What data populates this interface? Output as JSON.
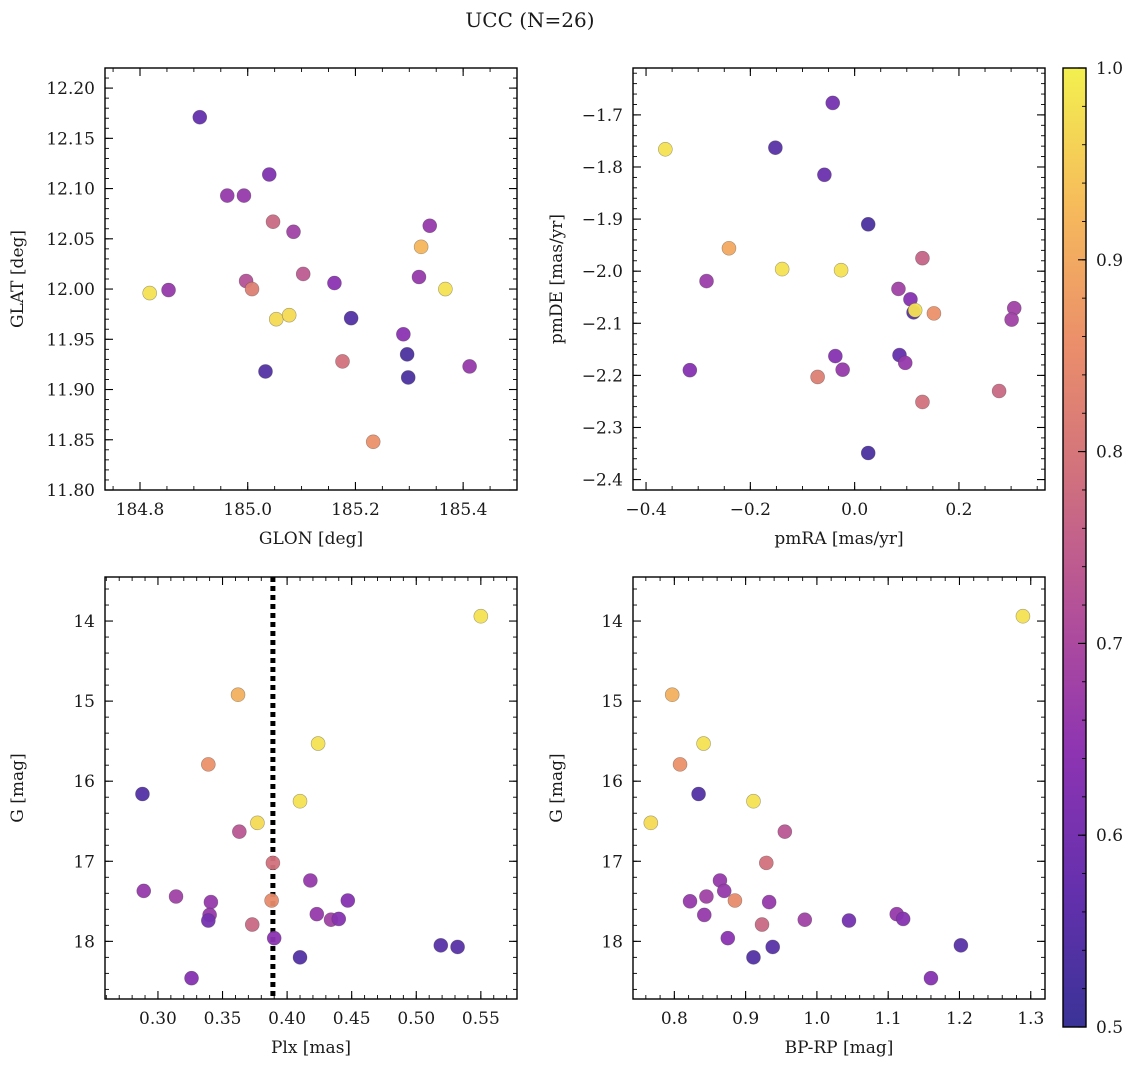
{
  "title": "UCC (N=26)",
  "colormap": {
    "name": "plasma",
    "range": [
      0.5,
      1.0
    ],
    "stops": [
      "#3a3397",
      "#6530ad",
      "#8d34b2",
      "#b24f9a",
      "#d0707e",
      "#eb8f6a",
      "#f6bb5b",
      "#f3f04f"
    ],
    "ticks": [
      {
        "value": 0.5,
        "label": "0.5"
      },
      {
        "value": 0.6,
        "label": "0.6"
      },
      {
        "value": 0.7,
        "label": "0.7"
      },
      {
        "value": 0.8,
        "label": "0.8"
      },
      {
        "value": 0.9,
        "label": "0.9"
      },
      {
        "value": 1.0,
        "label": "1.0"
      }
    ]
  },
  "chart_data": [
    {
      "type": "scatter",
      "xlabel": "GLON [deg]",
      "ylabel": "GLAT [deg]",
      "xlim": [
        184.735,
        185.5
      ],
      "ylim": [
        11.8,
        12.22
      ],
      "xticks": [
        {
          "v": 184.8,
          "l": "184.8"
        },
        {
          "v": 185.0,
          "l": "185.0"
        },
        {
          "v": 185.2,
          "l": "185.2"
        },
        {
          "v": 185.4,
          "l": "185.4"
        }
      ],
      "yticks": [
        {
          "v": 11.8,
          "l": "11.80"
        },
        {
          "v": 11.85,
          "l": "11.85"
        },
        {
          "v": 11.9,
          "l": "11.90"
        },
        {
          "v": 11.95,
          "l": "11.95"
        },
        {
          "v": 12.0,
          "l": "12.00"
        },
        {
          "v": 12.05,
          "l": "12.05"
        },
        {
          "v": 12.1,
          "l": "12.10"
        },
        {
          "v": 12.15,
          "l": "12.15"
        },
        {
          "v": 12.2,
          "l": "12.20"
        }
      ],
      "x_minor_step": 0.05,
      "y_minor_step": 0.01,
      "yinvert": false,
      "vline": null,
      "points": [
        {
          "x": 184.911,
          "y": 12.171,
          "c": 0.57
        },
        {
          "x": 184.962,
          "y": 12.093,
          "c": 0.66
        },
        {
          "x": 184.993,
          "y": 12.093,
          "c": 0.66
        },
        {
          "x": 185.04,
          "y": 12.114,
          "c": 0.62
        },
        {
          "x": 185.047,
          "y": 12.067,
          "c": 0.77
        },
        {
          "x": 185.085,
          "y": 12.057,
          "c": 0.68
        },
        {
          "x": 185.103,
          "y": 12.015,
          "c": 0.74
        },
        {
          "x": 184.997,
          "y": 12.008,
          "c": 0.72
        },
        {
          "x": 185.008,
          "y": 12.0,
          "c": 0.82
        },
        {
          "x": 184.853,
          "y": 11.999,
          "c": 0.66
        },
        {
          "x": 184.818,
          "y": 11.996,
          "c": 0.98
        },
        {
          "x": 185.053,
          "y": 11.97,
          "c": 0.97
        },
        {
          "x": 185.077,
          "y": 11.974,
          "c": 0.97
        },
        {
          "x": 185.161,
          "y": 12.006,
          "c": 0.64
        },
        {
          "x": 185.192,
          "y": 11.971,
          "c": 0.54
        },
        {
          "x": 185.176,
          "y": 11.928,
          "c": 0.79
        },
        {
          "x": 185.033,
          "y": 11.918,
          "c": 0.54
        },
        {
          "x": 185.289,
          "y": 11.955,
          "c": 0.64
        },
        {
          "x": 185.296,
          "y": 11.935,
          "c": 0.53
        },
        {
          "x": 185.298,
          "y": 11.912,
          "c": 0.53
        },
        {
          "x": 185.318,
          "y": 12.012,
          "c": 0.66
        },
        {
          "x": 185.322,
          "y": 12.042,
          "c": 0.92
        },
        {
          "x": 185.338,
          "y": 12.063,
          "c": 0.66
        },
        {
          "x": 185.367,
          "y": 12.0,
          "c": 0.98
        },
        {
          "x": 185.412,
          "y": 11.923,
          "c": 0.66
        },
        {
          "x": 185.233,
          "y": 11.848,
          "c": 0.86
        }
      ]
    },
    {
      "type": "scatter",
      "xlabel": "pmRA [mas/yr]",
      "ylabel": "pmDE [mas/yr]",
      "xlim": [
        -0.425,
        0.365
      ],
      "ylim": [
        -2.42,
        -1.61
      ],
      "xticks": [
        {
          "v": -0.4,
          "l": "−0.4"
        },
        {
          "v": -0.2,
          "l": "−0.2"
        },
        {
          "v": 0.0,
          "l": "0.0"
        },
        {
          "v": 0.2,
          "l": "0.2"
        }
      ],
      "yticks": [
        {
          "v": -2.4,
          "l": "−2.4"
        },
        {
          "v": -2.3,
          "l": "−2.3"
        },
        {
          "v": -2.2,
          "l": "−2.2"
        },
        {
          "v": -2.1,
          "l": "−2.1"
        },
        {
          "v": -2.0,
          "l": "−2.0"
        },
        {
          "v": -1.9,
          "l": "−1.9"
        },
        {
          "v": -1.8,
          "l": "−1.8"
        },
        {
          "v": -1.7,
          "l": "−1.7"
        }
      ],
      "x_minor_step": 0.05,
      "y_minor_step": 0.02,
      "yinvert": false,
      "vline": null,
      "points": [
        {
          "x": -0.363,
          "y": -1.766,
          "c": 0.98
        },
        {
          "x": -0.042,
          "y": -1.677,
          "c": 0.6
        },
        {
          "x": -0.152,
          "y": -1.763,
          "c": 0.55
        },
        {
          "x": -0.058,
          "y": -1.815,
          "c": 0.58
        },
        {
          "x": 0.026,
          "y": -1.91,
          "c": 0.53
        },
        {
          "x": -0.241,
          "y": -1.956,
          "c": 0.9
        },
        {
          "x": -0.139,
          "y": -1.996,
          "c": 0.98
        },
        {
          "x": -0.026,
          "y": -1.998,
          "c": 0.98
        },
        {
          "x": -0.284,
          "y": -2.019,
          "c": 0.67
        },
        {
          "x": 0.13,
          "y": -1.975,
          "c": 0.76
        },
        {
          "x": 0.084,
          "y": -2.034,
          "c": 0.68
        },
        {
          "x": 0.107,
          "y": -2.054,
          "c": 0.63
        },
        {
          "x": 0.113,
          "y": -2.079,
          "c": 0.55
        },
        {
          "x": 0.116,
          "y": -2.075,
          "c": 0.98
        },
        {
          "x": 0.152,
          "y": -2.081,
          "c": 0.86
        },
        {
          "x": 0.306,
          "y": -2.071,
          "c": 0.68
        },
        {
          "x": 0.301,
          "y": -2.093,
          "c": 0.68
        },
        {
          "x": -0.316,
          "y": -2.19,
          "c": 0.63
        },
        {
          "x": -0.037,
          "y": -2.163,
          "c": 0.63
        },
        {
          "x": -0.071,
          "y": -2.203,
          "c": 0.82
        },
        {
          "x": -0.023,
          "y": -2.189,
          "c": 0.66
        },
        {
          "x": 0.086,
          "y": -2.161,
          "c": 0.57
        },
        {
          "x": 0.097,
          "y": -2.176,
          "c": 0.66
        },
        {
          "x": 0.13,
          "y": -2.251,
          "c": 0.79
        },
        {
          "x": 0.277,
          "y": -2.23,
          "c": 0.77
        },
        {
          "x": 0.026,
          "y": -2.349,
          "c": 0.53
        }
      ]
    },
    {
      "type": "scatter",
      "xlabel": "Plx [mas]",
      "ylabel": "G [mag]",
      "xlim": [
        0.259,
        0.578
      ],
      "ylim": [
        13.45,
        18.72
      ],
      "xticks": [
        {
          "v": 0.3,
          "l": "0.30"
        },
        {
          "v": 0.35,
          "l": "0.35"
        },
        {
          "v": 0.4,
          "l": "0.40"
        },
        {
          "v": 0.45,
          "l": "0.45"
        },
        {
          "v": 0.5,
          "l": "0.50"
        },
        {
          "v": 0.55,
          "l": "0.55"
        }
      ],
      "yticks": [
        {
          "v": 14,
          "l": "14"
        },
        {
          "v": 15,
          "l": "15"
        },
        {
          "v": 16,
          "l": "16"
        },
        {
          "v": 17,
          "l": "17"
        },
        {
          "v": 18,
          "l": "18"
        }
      ],
      "x_minor_step": 0.01,
      "y_minor_step": 0.2,
      "yinvert": true,
      "vline": {
        "x": 0.389
      },
      "points": [
        {
          "x": 0.55,
          "y": 13.94,
          "c": 0.98
        },
        {
          "x": 0.362,
          "y": 14.92,
          "c": 0.91
        },
        {
          "x": 0.424,
          "y": 15.53,
          "c": 0.98
        },
        {
          "x": 0.339,
          "y": 15.79,
          "c": 0.86
        },
        {
          "x": 0.288,
          "y": 16.16,
          "c": 0.54
        },
        {
          "x": 0.41,
          "y": 16.25,
          "c": 0.98
        },
        {
          "x": 0.377,
          "y": 16.52,
          "c": 0.97
        },
        {
          "x": 0.363,
          "y": 16.63,
          "c": 0.73
        },
        {
          "x": 0.389,
          "y": 17.02,
          "c": 0.79
        },
        {
          "x": 0.418,
          "y": 17.24,
          "c": 0.66
        },
        {
          "x": 0.289,
          "y": 17.37,
          "c": 0.66
        },
        {
          "x": 0.314,
          "y": 17.44,
          "c": 0.68
        },
        {
          "x": 0.341,
          "y": 17.51,
          "c": 0.66
        },
        {
          "x": 0.388,
          "y": 17.49,
          "c": 0.85
        },
        {
          "x": 0.447,
          "y": 17.49,
          "c": 0.63
        },
        {
          "x": 0.34,
          "y": 17.67,
          "c": 0.66
        },
        {
          "x": 0.339,
          "y": 17.74,
          "c": 0.6
        },
        {
          "x": 0.423,
          "y": 17.66,
          "c": 0.66
        },
        {
          "x": 0.373,
          "y": 17.79,
          "c": 0.77
        },
        {
          "x": 0.434,
          "y": 17.73,
          "c": 0.68
        },
        {
          "x": 0.44,
          "y": 17.72,
          "c": 0.63
        },
        {
          "x": 0.39,
          "y": 17.96,
          "c": 0.64
        },
        {
          "x": 0.519,
          "y": 18.05,
          "c": 0.55
        },
        {
          "x": 0.532,
          "y": 18.07,
          "c": 0.55
        },
        {
          "x": 0.41,
          "y": 18.2,
          "c": 0.54
        },
        {
          "x": 0.326,
          "y": 18.46,
          "c": 0.63
        }
      ]
    },
    {
      "type": "scatter",
      "xlabel": "BP-RP [mag]",
      "ylabel": "G [mag]",
      "xlim": [
        0.742,
        1.32
      ],
      "ylim": [
        13.45,
        18.72
      ],
      "xticks": [
        {
          "v": 0.8,
          "l": "0.8"
        },
        {
          "v": 0.9,
          "l": "0.9"
        },
        {
          "v": 1.0,
          "l": "1.0"
        },
        {
          "v": 1.1,
          "l": "1.1"
        },
        {
          "v": 1.2,
          "l": "1.2"
        },
        {
          "v": 1.3,
          "l": "1.3"
        }
      ],
      "yticks": [
        {
          "v": 14,
          "l": "14"
        },
        {
          "v": 15,
          "l": "15"
        },
        {
          "v": 16,
          "l": "16"
        },
        {
          "v": 17,
          "l": "17"
        },
        {
          "v": 18,
          "l": "18"
        }
      ],
      "x_minor_step": 0.02,
      "y_minor_step": 0.2,
      "yinvert": true,
      "vline": null,
      "points": [
        {
          "x": 1.289,
          "y": 13.94,
          "c": 0.98
        },
        {
          "x": 0.797,
          "y": 14.92,
          "c": 0.91
        },
        {
          "x": 0.841,
          "y": 15.53,
          "c": 0.98
        },
        {
          "x": 0.808,
          "y": 15.79,
          "c": 0.86
        },
        {
          "x": 0.834,
          "y": 16.16,
          "c": 0.54
        },
        {
          "x": 0.911,
          "y": 16.25,
          "c": 0.98
        },
        {
          "x": 0.767,
          "y": 16.52,
          "c": 0.97
        },
        {
          "x": 0.955,
          "y": 16.63,
          "c": 0.73
        },
        {
          "x": 0.929,
          "y": 17.02,
          "c": 0.79
        },
        {
          "x": 0.864,
          "y": 17.24,
          "c": 0.66
        },
        {
          "x": 0.87,
          "y": 17.37,
          "c": 0.66
        },
        {
          "x": 0.845,
          "y": 17.44,
          "c": 0.68
        },
        {
          "x": 0.822,
          "y": 17.5,
          "c": 0.66
        },
        {
          "x": 0.885,
          "y": 17.49,
          "c": 0.85
        },
        {
          "x": 0.933,
          "y": 17.51,
          "c": 0.66
        },
        {
          "x": 0.842,
          "y": 17.67,
          "c": 0.66
        },
        {
          "x": 0.923,
          "y": 17.79,
          "c": 0.77
        },
        {
          "x": 0.983,
          "y": 17.73,
          "c": 0.68
        },
        {
          "x": 1.045,
          "y": 17.74,
          "c": 0.6
        },
        {
          "x": 1.112,
          "y": 17.66,
          "c": 0.66
        },
        {
          "x": 1.121,
          "y": 17.72,
          "c": 0.63
        },
        {
          "x": 0.875,
          "y": 17.96,
          "c": 0.64
        },
        {
          "x": 0.938,
          "y": 18.07,
          "c": 0.55
        },
        {
          "x": 1.202,
          "y": 18.05,
          "c": 0.55
        },
        {
          "x": 0.911,
          "y": 18.2,
          "c": 0.54
        },
        {
          "x": 1.16,
          "y": 18.46,
          "c": 0.63
        }
      ]
    }
  ]
}
